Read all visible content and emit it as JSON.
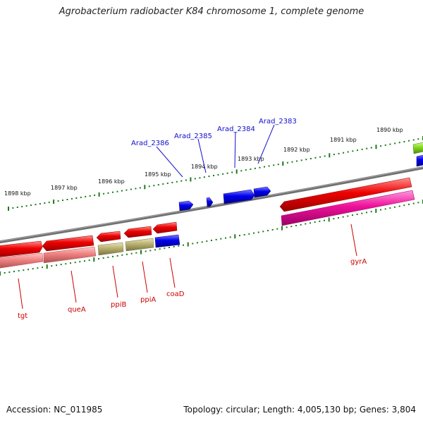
{
  "title": "Agrobacterium radiobacter K84 chromosome 1, complete genome",
  "footer": {
    "accession": "Accession: NC_011985",
    "summary": "Topology: circular; Length: 4,005,130 bp; Genes: 3,804"
  },
  "colors": {
    "backbone": "#777777",
    "tick": "#1a7a1a",
    "gene_red": "#ee0000",
    "gene_blue": "#0000ee",
    "gene_pink": "#ee1199",
    "gene_salmon": "#ef8080",
    "gene_olive": "#b8b070",
    "gene_lime": "#88dd22",
    "label_blue": "#1010cc",
    "label_red": "#cc0000"
  },
  "scale_labels": [
    "1898 kbp",
    "1897 kbp",
    "1896 kbp",
    "1895 kbp",
    "1894 kbp",
    "1893 kbp",
    "1892 kbp",
    "1891 kbp",
    "1890 kbp"
  ],
  "upper_gene_labels": [
    "Arad_2386",
    "Arad_2385",
    "Arad_2384",
    "Arad_2383"
  ],
  "lower_gene_labels": [
    "tgt",
    "queA",
    "ppiB",
    "ppiA",
    "coaD",
    "gyrA"
  ]
}
